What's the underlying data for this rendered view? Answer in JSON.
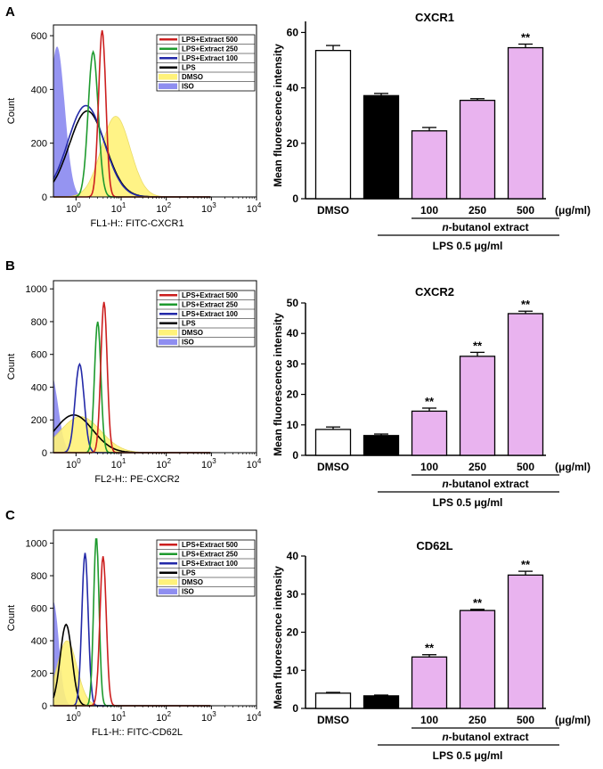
{
  "panels": [
    {
      "letter": "A",
      "histogram": {
        "ylabel": "Count",
        "xlabel": "FL1-H:: FITC-CXCR1",
        "yticks": [
          0,
          200,
          400,
          600
        ],
        "ymax": 640,
        "xticks": [
          {
            "base": "10",
            "exp": "0"
          },
          {
            "base": "10",
            "exp": "1"
          },
          {
            "base": "10",
            "exp": "2"
          },
          {
            "base": "10",
            "exp": "3"
          },
          {
            "base": "10",
            "exp": "4"
          }
        ],
        "legend": [
          "LPS+Extract 500",
          "LPS+Extract 250",
          "LPS+Extract 100",
          "LPS",
          "DMSO",
          "ISO"
        ],
        "curves": [
          {
            "peak": 0.58,
            "width": 0.08,
            "height": 620
          },
          {
            "peak": 0.38,
            "width": 0.11,
            "height": 540
          },
          {
            "peak": 0.22,
            "width": 0.4,
            "height": 340
          },
          {
            "peak": 0.25,
            "width": 0.4,
            "height": 320
          },
          {
            "peak": 0.88,
            "width": 0.32,
            "height": 300
          },
          {
            "peak": -0.42,
            "width": 0.17,
            "height": 560
          }
        ]
      },
      "bar": {
        "title": "CXCR1",
        "ylabel": "Mean fluorescence intensity",
        "yticks": [
          0,
          20,
          40,
          60
        ],
        "ymax": 64,
        "categories": [
          "DMSO",
          "",
          "100",
          "250",
          "500"
        ],
        "values": [
          53.5,
          37.2,
          24.5,
          35.5,
          54.5
        ],
        "errors": [
          1.8,
          0.8,
          1.2,
          0.6,
          1.3
        ],
        "significance": [
          "",
          "",
          "",
          "",
          "**"
        ],
        "units": "(μg/ml)",
        "extract_label_italic": "n",
        "extract_label_rest": "-butanol extract",
        "lps_label": "LPS 0.5 μg/ml"
      }
    },
    {
      "letter": "B",
      "histogram": {
        "ylabel": "Count",
        "xlabel": "FL2-H:: PE-CXCR2",
        "yticks": [
          0,
          200,
          400,
          600,
          800,
          1000
        ],
        "ymax": 1050,
        "xticks": [
          {
            "base": "10",
            "exp": "0"
          },
          {
            "base": "10",
            "exp": "1"
          },
          {
            "base": "10",
            "exp": "2"
          },
          {
            "base": "10",
            "exp": "3"
          },
          {
            "base": "10",
            "exp": "4"
          }
        ],
        "legend": [
          "LPS+Extract 500",
          "LPS+Extract 250",
          "LPS+Extract 100",
          "LPS",
          "DMSO",
          "ISO"
        ],
        "curves": [
          {
            "peak": 0.62,
            "width": 0.07,
            "height": 920
          },
          {
            "peak": 0.48,
            "width": 0.07,
            "height": 800
          },
          {
            "peak": 0.08,
            "width": 0.1,
            "height": 540
          },
          {
            "peak": -0.05,
            "width": 0.42,
            "height": 230
          },
          {
            "peak": 0.1,
            "width": 0.45,
            "height": 220
          },
          {
            "peak": -0.55,
            "width": 0.15,
            "height": 480
          }
        ]
      },
      "bar": {
        "title": "CXCR2",
        "ylabel": "Mean fluorescence intensity",
        "yticks": [
          0,
          10,
          20,
          30,
          40,
          50
        ],
        "ymax": 50,
        "categories": [
          "DMSO",
          "",
          "100",
          "250",
          "500"
        ],
        "values": [
          8.5,
          6.5,
          14.5,
          32.5,
          46.5
        ],
        "errors": [
          0.8,
          0.5,
          1.0,
          1.3,
          0.8
        ],
        "significance": [
          "",
          "",
          "**",
          "**",
          "**"
        ],
        "units": "(μg/ml)",
        "extract_label_italic": "n",
        "extract_label_rest": "-butanol extract",
        "lps_label": "LPS 0.5 μg/ml"
      }
    },
    {
      "letter": "C",
      "histogram": {
        "ylabel": "Count",
        "xlabel": "FL1-H:: FITC-CD62L",
        "yticks": [
          0,
          200,
          400,
          600,
          800,
          1000
        ],
        "ymax": 1080,
        "xticks": [
          {
            "base": "10",
            "exp": "0"
          },
          {
            "base": "10",
            "exp": "1"
          },
          {
            "base": "10",
            "exp": "2"
          },
          {
            "base": "10",
            "exp": "3"
          },
          {
            "base": "10",
            "exp": "4"
          }
        ],
        "legend": [
          "LPS+Extract 500",
          "LPS+Extract 250",
          "LPS+Extract 100",
          "LPS",
          "DMSO",
          "ISO"
        ],
        "curves": [
          {
            "peak": 0.6,
            "width": 0.07,
            "height": 920
          },
          {
            "peak": 0.45,
            "width": 0.06,
            "height": 1040
          },
          {
            "peak": 0.2,
            "width": 0.07,
            "height": 940
          },
          {
            "peak": -0.22,
            "width": 0.13,
            "height": 500
          },
          {
            "peak": -0.2,
            "width": 0.22,
            "height": 400
          },
          {
            "peak": -0.5,
            "width": 0.12,
            "height": 640
          }
        ]
      },
      "bar": {
        "title": "CD62L",
        "ylabel": "Mean fluorescence intensity",
        "yticks": [
          0,
          10,
          20,
          30,
          40
        ],
        "ymax": 40,
        "categories": [
          "DMSO",
          "",
          "100",
          "250",
          "500"
        ],
        "values": [
          4.0,
          3.3,
          13.5,
          25.7,
          35.0
        ],
        "errors": [
          0.2,
          0.2,
          0.6,
          0.3,
          1.0
        ],
        "significance": [
          "",
          "",
          "**",
          "**",
          "**"
        ],
        "units": "(μg/ml)",
        "extract_label_italic": "n",
        "extract_label_rest": "-butanol extract",
        "lps_label": "LPS 0.5 μg/ml"
      }
    }
  ],
  "colors": {
    "red": "#cc1f1f",
    "green": "#1e9a2e",
    "blue": "#2329a8",
    "black": "#000000",
    "yellow": "#fff27a",
    "iso": "#8f8ef0",
    "dmso_bar": "#ffffff",
    "lps_bar": "#000000",
    "extract_bar": "#e9b3ef"
  },
  "chart_data": [
    {
      "type": "bar",
      "title": "CXCR1",
      "categories": [
        "DMSO",
        "",
        "100",
        "250",
        "500"
      ],
      "values": [
        53.5,
        37.2,
        24.5,
        35.5,
        54.5
      ],
      "errors": [
        1.8,
        0.8,
        1.2,
        0.6,
        1.3
      ],
      "xlabel": "n-butanol extract (μg/ml); LPS 0.5 μg/ml",
      "ylabel": "Mean fluorescence intensity",
      "ylim": [
        0,
        64
      ]
    },
    {
      "type": "bar",
      "title": "CXCR2",
      "categories": [
        "DMSO",
        "",
        "100",
        "250",
        "500"
      ],
      "values": [
        8.5,
        6.5,
        14.5,
        32.5,
        46.5
      ],
      "errors": [
        0.8,
        0.5,
        1.0,
        1.3,
        0.8
      ],
      "xlabel": "n-butanol extract (μg/ml); LPS 0.5 μg/ml",
      "ylabel": "Mean fluorescence intensity",
      "ylim": [
        0,
        50
      ]
    },
    {
      "type": "bar",
      "title": "CD62L",
      "categories": [
        "DMSO",
        "",
        "100",
        "250",
        "500"
      ],
      "values": [
        4.0,
        3.3,
        13.5,
        25.7,
        35.0
      ],
      "errors": [
        0.2,
        0.2,
        0.6,
        0.3,
        1.0
      ],
      "xlabel": "n-butanol extract (μg/ml); LPS 0.5 μg/ml",
      "ylabel": "Mean fluorescence intensity",
      "ylim": [
        0,
        40
      ]
    }
  ]
}
